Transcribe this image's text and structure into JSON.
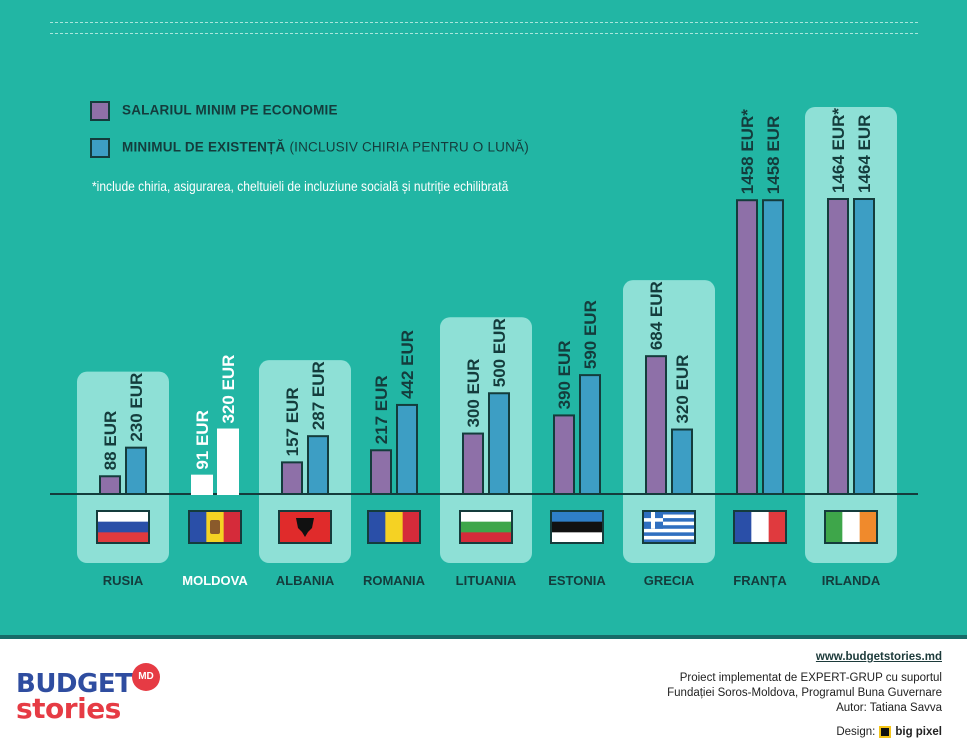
{
  "chart_data": {
    "type": "bar",
    "categories": [
      "RUSIA",
      "MOLDOVA",
      "ALBANIA",
      "ROMANIA",
      "LITUANIA",
      "ESTONIA",
      "GRECIA",
      "FRANȚA",
      "IRLANDA"
    ],
    "series": [
      {
        "name": "SALARIUL MINIM PE ECONOMIE",
        "values": [
          88,
          91,
          157,
          217,
          300,
          390,
          684,
          1458,
          1464
        ],
        "labels": [
          "88 EUR",
          "91 EUR",
          "157 EUR",
          "217 EUR",
          "300 EUR",
          "390 EUR",
          "684 EUR",
          "1458 EUR*",
          "1464 EUR*"
        ]
      },
      {
        "name": "MINIMUL DE EXISTENȚĂ",
        "values": [
          230,
          320,
          287,
          442,
          500,
          590,
          320,
          1458,
          1464
        ],
        "labels": [
          "230 EUR",
          "320 EUR",
          "287 EUR",
          "442 EUR",
          "500 EUR",
          "590 EUR",
          "320 EUR",
          "1458 EUR",
          "1464 EUR"
        ]
      }
    ],
    "highlighted": [
      true,
      false,
      true,
      false,
      true,
      false,
      true,
      false,
      true
    ],
    "legend_position": "top-left",
    "colors": {
      "background": "#22b6a4",
      "highlight_panel": "#8ee0d6",
      "series1": "#8e70a8",
      "series2": "#3d9ec4",
      "outline": "#143c3c",
      "moldova_label": "#ffffff",
      "country_label": "#143c3c"
    }
  },
  "legend": {
    "item1": "SALARIUL MINIM PE ECONOMIE",
    "item2_bold": "MINIMUL DE EXISTENȚĂ",
    "item2_light": " (INCLUSIV CHIRIA PENTRU O LUNĂ)"
  },
  "note": "*include chiria, asigurarea, cheltuieli de incluziune socială și nutriție echilibrată",
  "flags": [
    "russia-flag",
    "moldova-flag",
    "albania-flag",
    "romania-flag",
    "lithuania-flag",
    "estonia-flag",
    "greece-flag",
    "france-flag",
    "ireland-flag"
  ],
  "footer": {
    "logo_top": "BUDGET",
    "logo_bottom": "stories",
    "logo_badge": "MD",
    "website": "www.budgetstories.md",
    "credit_line1": "Proiect implementat de EXPERT-GRUP cu suportul",
    "credit_line2": "Fundației Soros-Moldova, Programul Buna Guvernare",
    "credit_line3": "Autor: Tatiana Savva",
    "design_label": "Design:",
    "design_name": "big pixel"
  }
}
